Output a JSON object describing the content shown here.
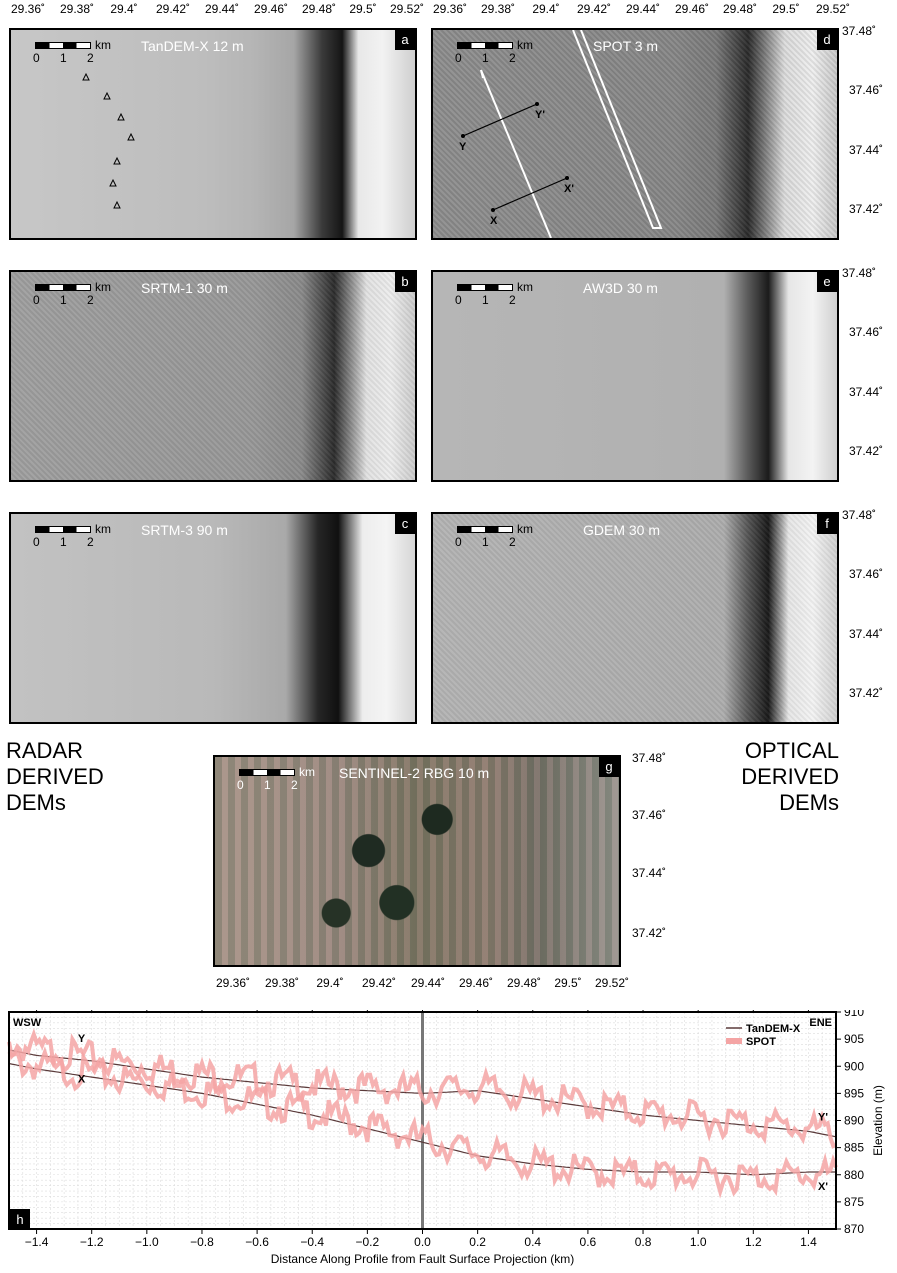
{
  "top_axis_labels": [
    "29.36˚",
    "29.38˚",
    "29.4˚",
    "29.42˚",
    "29.44˚",
    "29.46˚",
    "29.48˚",
    "29.5˚",
    "29.52˚"
  ],
  "top_axis_labels_right": [
    "29.36˚",
    "29.38˚",
    "29.4˚",
    "29.42˚",
    "29.44˚",
    "29.46˚",
    "29.48˚",
    "29.5˚",
    "29.52˚"
  ],
  "lat_labels": [
    "37.48˚",
    "37.46˚",
    "37.44˚",
    "37.42˚"
  ],
  "bottom_axis_labels": [
    "29.36˚",
    "29.38˚",
    "29.4˚",
    "29.42˚",
    "29.44˚",
    "29.46˚",
    "29.48˚",
    "29.5˚",
    "29.52˚"
  ],
  "scalebar": {
    "unit": "km",
    "ticks": [
      "0",
      "1",
      "2"
    ]
  },
  "panels": {
    "a": {
      "title": "TanDEM-X 12 m",
      "letter": "a"
    },
    "b": {
      "title": "SRTM-1 30 m",
      "letter": "b"
    },
    "c": {
      "title": "SRTM-3 90 m",
      "letter": "c"
    },
    "d": {
      "title": "SPOT 3 m",
      "letter": "d",
      "profile_labels": [
        "Y",
        "Y'",
        "X",
        "X'"
      ]
    },
    "e": {
      "title": "AW3D 30 m",
      "letter": "e"
    },
    "f": {
      "title": "GDEM 30 m",
      "letter": "f"
    },
    "g": {
      "title": "SENTINEL-2 RBG 10 m",
      "letter": "g"
    }
  },
  "side_labels": {
    "left": [
      "RADAR",
      "DERIVED",
      "DEMs"
    ],
    "right": [
      "OPTICAL",
      "DERIVED",
      "DEMs"
    ]
  },
  "chart_data": {
    "type": "line",
    "panel_letter": "h",
    "xlabel": "Distance Along Profile from Fault Surface Projection (km)",
    "ylabel": "Elevation (m)",
    "xlim": [
      -1.5,
      1.5
    ],
    "ylim": [
      870,
      910
    ],
    "xticks": [
      "−1.4",
      "−1.2",
      "−1.0",
      "−0.8",
      "−0.6",
      "−0.4",
      "−0.2",
      "0.0",
      "0.2",
      "0.4",
      "0.6",
      "0.8",
      "1.0",
      "1.2",
      "1.4"
    ],
    "yticks": [
      "910",
      "905",
      "900",
      "895",
      "890",
      "885",
      "880",
      "875",
      "870"
    ],
    "grid": true,
    "legend_position": "top-right",
    "corner_labels": {
      "left": "WSW",
      "right": "ENE"
    },
    "profile_labels": {
      "Y": "Y",
      "X": "X",
      "Yp": "Y'",
      "Xp": "X'"
    },
    "fault_position_km": 0.0,
    "series": [
      {
        "name": "TanDEM-X",
        "color": "#5a3a3a",
        "profiles": {
          "Y": {
            "x": [
              -1.5,
              -1.4,
              -1.2,
              -1.0,
              -0.8,
              -0.6,
              -0.4,
              -0.2,
              0.0,
              0.2,
              0.4,
              0.6,
              0.8,
              1.0,
              1.2,
              1.4,
              1.5
            ],
            "y": [
              903,
              902,
              901,
              899.5,
              898,
              897,
              896,
              895.5,
              895,
              895.5,
              894,
              892.5,
              891,
              890,
              889,
              888,
              887
            ]
          },
          "X": {
            "x": [
              -1.5,
              -1.4,
              -1.2,
              -1.0,
              -0.8,
              -0.6,
              -0.4,
              -0.2,
              0.0,
              0.2,
              0.4,
              0.6,
              0.8,
              1.0,
              1.2,
              1.4,
              1.5
            ],
            "y": [
              900.5,
              899.5,
              898,
              896.5,
              895,
              893,
              891,
              888.5,
              886,
              883.5,
              882,
              881,
              880.5,
              880.5,
              880,
              880.5,
              880.5
            ]
          }
        }
      },
      {
        "name": "SPOT",
        "color": "#f4a4a4",
        "profiles": {
          "Y": {
            "x": [
              -1.5,
              -1.4,
              -1.2,
              -1.0,
              -0.8,
              -0.6,
              -0.4,
              -0.2,
              0.0,
              0.2,
              0.4,
              0.6,
              0.8,
              1.0,
              1.2,
              1.4,
              1.5
            ],
            "y": [
              904,
              903,
              901.5,
              900,
              898.5,
              897.5,
              896.5,
              896,
              895.5,
              896,
              894.5,
              893,
              891.5,
              890.5,
              889.5,
              888.5,
              887.5
            ]
          },
          "X": {
            "x": [
              -1.5,
              -1.4,
              -1.2,
              -1.0,
              -0.8,
              -0.6,
              -0.4,
              -0.2,
              0.0,
              0.2,
              0.4,
              0.6,
              0.8,
              1.0,
              1.2,
              1.4,
              1.5
            ],
            "y": [
              901,
              900,
              898.5,
              897,
              895.5,
              893.5,
              891.5,
              889,
              886.5,
              884,
              882,
              880.5,
              880,
              880,
              879.5,
              880,
              880
            ]
          }
        }
      }
    ]
  }
}
